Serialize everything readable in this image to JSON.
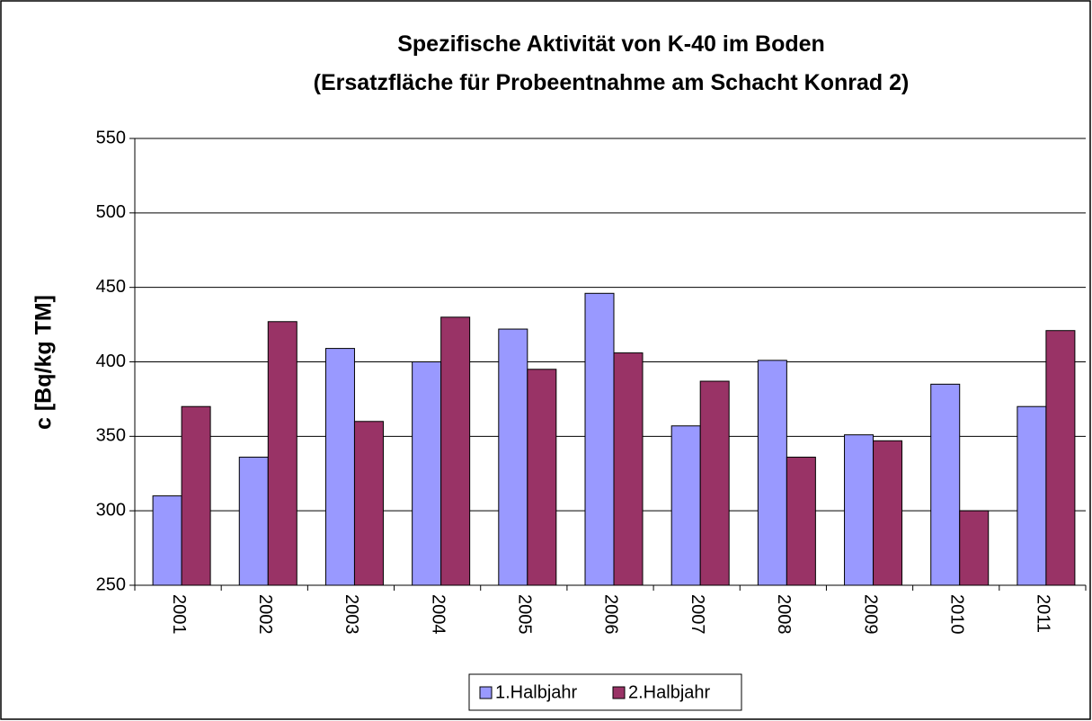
{
  "chart_data": {
    "type": "bar",
    "title": [
      "Spezifische Aktivität von K-40 im Boden",
      "(Ersatzfläche für Probeentnahme am Schacht Konrad 2)"
    ],
    "y_label": "c [Bq/kg TM]",
    "categories": [
      "2001",
      "2002",
      "2003",
      "2004",
      "2005",
      "2006",
      "2007",
      "2008",
      "2009",
      "2010",
      "2011"
    ],
    "series": [
      {
        "name": "1.Halbjahr",
        "color": "#9999ff",
        "values": [
          310,
          336,
          409,
          400,
          422,
          446,
          357,
          401,
          351,
          385,
          370
        ]
      },
      {
        "name": "2.Halbjahr",
        "color": "#993366",
        "values": [
          370,
          427,
          360,
          430,
          395,
          406,
          387,
          336,
          347,
          300,
          421
        ]
      }
    ],
    "ylim": [
      250,
      550
    ],
    "yticks": [
      250,
      300,
      350,
      400,
      450,
      500,
      550
    ],
    "grid": true,
    "legend": "bottom"
  }
}
